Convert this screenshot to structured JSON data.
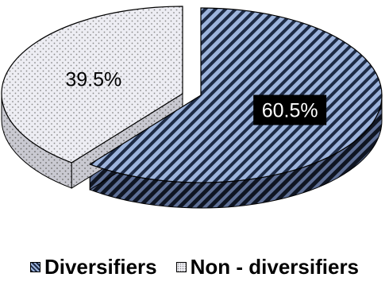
{
  "chart_data": {
    "type": "pie",
    "title": "",
    "categories": [
      "Diversifiers",
      "Non - diversifiers"
    ],
    "values": [
      60.5,
      39.5
    ],
    "data_labels": [
      "60.5%",
      "39.5%"
    ],
    "style": "3d-exploded",
    "legend": {
      "placement": "bottom",
      "entries": [
        "Diversifiers",
        "Non - diversifiers"
      ]
    },
    "colors": {
      "diversifiers_dark": "#1d2a44",
      "diversifiers_light": "#9db4dc",
      "non_diversifiers_fill": "#ededf3",
      "non_diversifiers_dots": "#8a8a8a",
      "outline": "#000000",
      "label_box": "#000000"
    }
  }
}
